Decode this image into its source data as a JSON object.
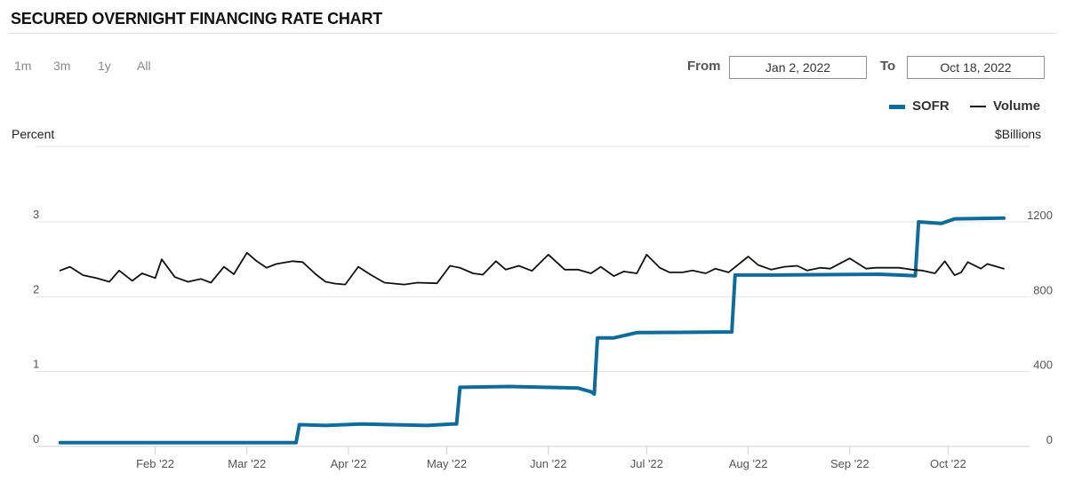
{
  "header": {
    "title": "SECURED OVERNIGHT FINANCING RATE CHART"
  },
  "range_buttons": [
    "1m",
    "3m",
    "1y",
    "All"
  ],
  "date_range": {
    "from_label": "From",
    "from_value": "Jan 2, 2022",
    "to_label": "To",
    "to_value": "Oct 18, 2022"
  },
  "legend": {
    "sofr_label": "SOFR",
    "volume_label": "Volume"
  },
  "colors": {
    "sofr": "#0f6b99",
    "volume": "#111111",
    "grid": "#e2e2e2"
  },
  "chart_data": {
    "type": "line",
    "title": "SECURED OVERNIGHT FINANCING RATE CHART",
    "y_left_label": "Percent",
    "y_right_label": "$Billions",
    "y_left_ticks": [
      "0",
      "1",
      "2",
      "3"
    ],
    "y_right_ticks": [
      "0",
      "400",
      "800",
      "1200"
    ],
    "ylim_left": [
      0,
      3
    ],
    "ylim_right": [
      0,
      1200
    ],
    "x_tick_labels": [
      "Feb '22",
      "Mar '22",
      "Apr '22",
      "May '22",
      "Jun '22",
      "Jul '22",
      "Aug '22",
      "Sep '22",
      "Oct '22"
    ],
    "x_range": [
      "2022-01-02",
      "2022-10-18"
    ],
    "grid": true,
    "series": [
      {
        "name": "SOFR",
        "axis": "left",
        "points": [
          [
            "2022-01-03",
            0.05
          ],
          [
            "2022-01-25",
            0.05
          ],
          [
            "2022-01-31",
            0.05
          ],
          [
            "2022-02-15",
            0.05
          ],
          [
            "2022-03-16",
            0.05
          ],
          [
            "2022-03-17",
            0.29
          ],
          [
            "2022-03-25",
            0.28
          ],
          [
            "2022-04-05",
            0.3
          ],
          [
            "2022-04-25",
            0.28
          ],
          [
            "2022-05-03",
            0.3
          ],
          [
            "2022-05-04",
            0.3
          ],
          [
            "2022-05-05",
            0.79
          ],
          [
            "2022-05-20",
            0.8
          ],
          [
            "2022-06-10",
            0.78
          ],
          [
            "2022-06-14",
            0.73
          ],
          [
            "2022-06-15",
            0.7
          ],
          [
            "2022-06-16",
            1.45
          ],
          [
            "2022-06-21",
            1.45
          ],
          [
            "2022-06-28",
            1.52
          ],
          [
            "2022-07-27",
            1.53
          ],
          [
            "2022-07-28",
            2.29
          ],
          [
            "2022-08-10",
            2.29
          ],
          [
            "2022-09-10",
            2.3
          ],
          [
            "2022-09-21",
            2.28
          ],
          [
            "2022-09-22",
            3.0
          ],
          [
            "2022-09-29",
            2.98
          ],
          [
            "2022-10-03",
            3.04
          ],
          [
            "2022-10-18",
            3.05
          ]
        ]
      },
      {
        "name": "Volume",
        "axis": "right",
        "points": [
          [
            "2022-01-03",
            940
          ],
          [
            "2022-01-06",
            960
          ],
          [
            "2022-01-10",
            915
          ],
          [
            "2022-01-14",
            900
          ],
          [
            "2022-01-18",
            880
          ],
          [
            "2022-01-21",
            940
          ],
          [
            "2022-01-25",
            885
          ],
          [
            "2022-01-28",
            925
          ],
          [
            "2022-02-01",
            900
          ],
          [
            "2022-02-03",
            1000
          ],
          [
            "2022-02-07",
            905
          ],
          [
            "2022-02-11",
            880
          ],
          [
            "2022-02-15",
            895
          ],
          [
            "2022-02-18",
            875
          ],
          [
            "2022-02-22",
            960
          ],
          [
            "2022-02-25",
            920
          ],
          [
            "2022-03-01",
            1035
          ],
          [
            "2022-03-04",
            990
          ],
          [
            "2022-03-07",
            955
          ],
          [
            "2022-03-10",
            975
          ],
          [
            "2022-03-15",
            990
          ],
          [
            "2022-03-18",
            985
          ],
          [
            "2022-03-22",
            920
          ],
          [
            "2022-03-25",
            880
          ],
          [
            "2022-03-28",
            870
          ],
          [
            "2022-03-31",
            865
          ],
          [
            "2022-04-04",
            960
          ],
          [
            "2022-04-08",
            915
          ],
          [
            "2022-04-12",
            875
          ],
          [
            "2022-04-18",
            865
          ],
          [
            "2022-04-22",
            875
          ],
          [
            "2022-04-28",
            872
          ],
          [
            "2022-05-02",
            965
          ],
          [
            "2022-05-05",
            955
          ],
          [
            "2022-05-09",
            925
          ],
          [
            "2022-05-12",
            918
          ],
          [
            "2022-05-16",
            990
          ],
          [
            "2022-05-19",
            945
          ],
          [
            "2022-05-23",
            965
          ],
          [
            "2022-05-27",
            938
          ],
          [
            "2022-06-01",
            1025
          ],
          [
            "2022-06-06",
            945
          ],
          [
            "2022-06-10",
            945
          ],
          [
            "2022-06-14",
            925
          ],
          [
            "2022-06-17",
            960
          ],
          [
            "2022-06-21",
            910
          ],
          [
            "2022-06-24",
            935
          ],
          [
            "2022-06-28",
            925
          ],
          [
            "2022-07-01",
            1025
          ],
          [
            "2022-07-05",
            955
          ],
          [
            "2022-07-08",
            930
          ],
          [
            "2022-07-12",
            930
          ],
          [
            "2022-07-15",
            940
          ],
          [
            "2022-07-19",
            925
          ],
          [
            "2022-07-22",
            950
          ],
          [
            "2022-07-26",
            930
          ],
          [
            "2022-08-01",
            1015
          ],
          [
            "2022-08-04",
            970
          ],
          [
            "2022-08-08",
            945
          ],
          [
            "2022-08-12",
            960
          ],
          [
            "2022-08-16",
            965
          ],
          [
            "2022-08-19",
            940
          ],
          [
            "2022-08-23",
            955
          ],
          [
            "2022-08-26",
            950
          ],
          [
            "2022-09-01",
            1005
          ],
          [
            "2022-09-06",
            950
          ],
          [
            "2022-09-09",
            955
          ],
          [
            "2022-09-13",
            955
          ],
          [
            "2022-09-16",
            955
          ],
          [
            "2022-09-20",
            945
          ],
          [
            "2022-09-23",
            940
          ],
          [
            "2022-09-27",
            925
          ],
          [
            "2022-09-30",
            990
          ],
          [
            "2022-10-03",
            915
          ],
          [
            "2022-10-05",
            930
          ],
          [
            "2022-10-07",
            985
          ],
          [
            "2022-10-11",
            950
          ],
          [
            "2022-10-13",
            975
          ],
          [
            "2022-10-18",
            950
          ]
        ]
      }
    ]
  }
}
